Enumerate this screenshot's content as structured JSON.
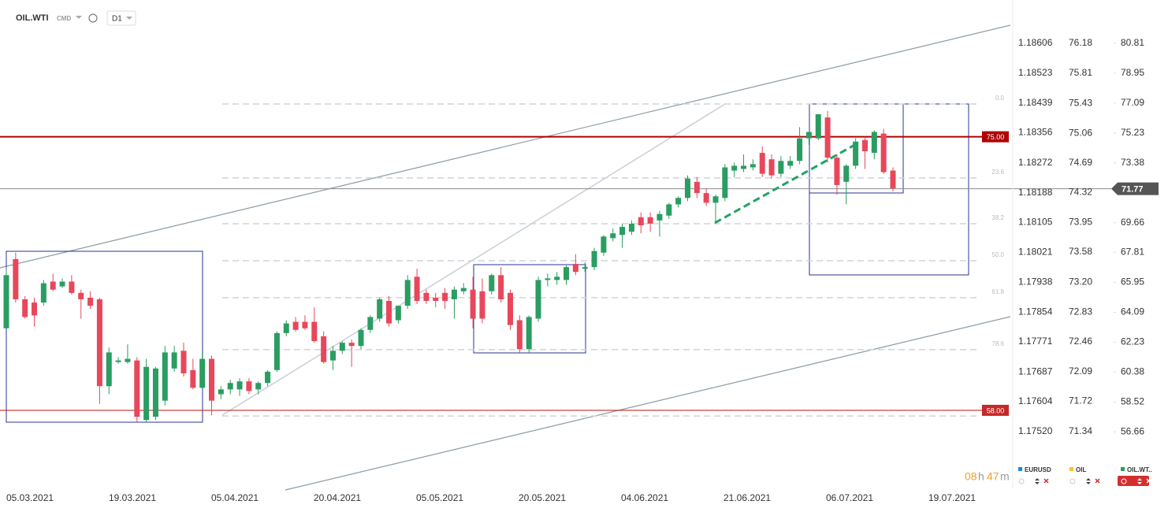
{
  "chart_data": {
    "type": "candlestick",
    "symbol": "OIL.WTI",
    "tag": "CMD",
    "timeframe": "D1",
    "colors": {
      "up": "#2a9d62",
      "down": "#e8475b"
    },
    "ylim": [
      53.15,
      83.5
    ],
    "yticks": [
      80.81,
      78.95,
      77.09,
      75.23,
      73.38,
      69.66,
      67.81,
      65.95,
      64.09,
      62.23,
      60.38,
      58.52,
      56.66
    ],
    "eurusd_ticks": [
      1.18606,
      1.18523,
      1.18439,
      1.18356,
      1.18272,
      1.18188,
      1.18105,
      1.18021,
      1.17938,
      1.17854,
      1.17771,
      1.17687,
      1.17604,
      {
        "value": 1.1752,
        "label": "1.17520"
      }
    ],
    "oil_ticks": [
      76.18,
      75.81,
      75.43,
      75.06,
      74.69,
      74.32,
      73.95,
      73.58,
      {
        "value": 73.2,
        "label": "73.20"
      },
      72.83,
      72.46,
      72.09,
      71.72,
      71.34
    ],
    "dates": [
      "05.03.2021",
      "19.03.2021",
      "05.04.2021",
      "20.04.2021",
      "05.05.2021",
      "20.05.2021",
      "04.06.2021",
      "21.06.2021",
      "06.07.2021",
      "19.07.2021"
    ],
    "levels": [
      {
        "price": 75,
        "label": "75.00",
        "color": "#b00000"
      },
      {
        "price": 58,
        "label": "58.00",
        "color": "#c62828"
      }
    ],
    "current": {
      "price": 71.77,
      "label": "71.77"
    },
    "fib": [
      {
        "ratio": {
          "value": 0,
          "label": "0.0"
        },
        "price": 77.04
      },
      {
        "ratio": 23.6,
        "price": 72.44
      },
      {
        "ratio": 38.2,
        "price": 69.6
      },
      {
        "ratio": {
          "value": 50,
          "label": "50.0"
        },
        "price": 67.3
      },
      {
        "ratio": 61.8,
        "price": 65.0
      },
      {
        "ratio": 78.6,
        "price": 61.77
      },
      {
        "price": 57.65
      }
    ],
    "ohlc": [
      [
        63.1,
        66.9,
        63.1,
        66.4
      ],
      [
        67.4,
        67.8,
        64.7,
        64.9
      ],
      [
        64.9,
        65.1,
        63.7,
        63.8
      ],
      [
        64.7,
        65.0,
        63.2,
        63.9
      ],
      [
        64.7,
        66.1,
        64.5,
        65.9
      ],
      [
        66.0,
        66.5,
        65.4,
        65.5
      ],
      [
        65.7,
        66.2,
        65.6,
        66.0
      ],
      [
        66.0,
        66.4,
        65.2,
        65.3
      ],
      [
        65.3,
        65.5,
        63.7,
        64.9
      ],
      [
        65.0,
        65.4,
        64.3,
        64.5
      ],
      [
        64.9,
        65.0,
        58.4,
        59.5
      ],
      [
        59.5,
        61.9,
        59.0,
        61.6
      ],
      [
        61.0,
        61.3,
        60.9,
        61.1
      ],
      [
        61.0,
        62.1,
        60.9,
        61.2
      ],
      [
        61.1,
        61.3,
        57.3,
        57.6
      ],
      [
        57.4,
        61.2,
        57.3,
        60.7
      ],
      [
        57.6,
        60.7,
        57.4,
        60.6
      ],
      [
        58.6,
        62.0,
        58.3,
        61.6
      ],
      [
        60.6,
        62.0,
        60.4,
        61.6
      ],
      [
        61.7,
        62.2,
        60.1,
        60.3
      ],
      [
        60.5,
        61.2,
        59.3,
        59.4
      ],
      [
        59.4,
        61.7,
        59.3,
        61.2
      ],
      [
        61.2,
        61.4,
        57.7,
        58.6
      ],
      [
        59.0,
        59.5,
        58.7,
        59.3
      ],
      [
        59.3,
        59.9,
        59.0,
        59.7
      ],
      [
        59.3,
        60.0,
        58.9,
        59.8
      ],
      [
        59.8,
        60.0,
        59.0,
        59.2
      ],
      [
        59.3,
        59.8,
        59.0,
        59.7
      ],
      [
        59.7,
        60.5,
        59.5,
        60.4
      ],
      [
        60.5,
        62.9,
        60.4,
        62.8
      ],
      [
        62.8,
        63.6,
        62.6,
        63.4
      ],
      [
        63.5,
        63.8,
        62.9,
        63.0
      ],
      [
        63.5,
        63.9,
        63.0,
        63.1
      ],
      [
        63.5,
        64.4,
        62.2,
        62.3
      ],
      [
        62.6,
        62.9,
        60.9,
        61.0
      ],
      [
        61.1,
        62.0,
        60.5,
        61.7
      ],
      [
        61.7,
        62.3,
        61.5,
        62.2
      ],
      [
        62.2,
        62.4,
        60.7,
        62.0
      ],
      [
        62.0,
        63.1,
        61.8,
        63.0
      ],
      [
        63.0,
        63.9,
        62.8,
        63.8
      ],
      [
        63.7,
        65.0,
        63.5,
        64.9
      ],
      [
        64.8,
        65.1,
        63.2,
        63.4
      ],
      [
        63.6,
        64.5,
        63.4,
        64.5
      ],
      [
        64.5,
        66.4,
        64.3,
        66.1
      ],
      [
        66.3,
        66.8,
        64.6,
        64.8
      ],
      [
        65.3,
        65.5,
        64.6,
        64.8
      ],
      [
        65.0,
        65.3,
        64.4,
        64.8
      ],
      [
        65.3,
        65.6,
        64.3,
        64.8
      ],
      [
        64.9,
        65.7,
        63.7,
        65.5
      ],
      [
        65.4,
        65.9,
        65.2,
        65.6
      ],
      [
        65.5,
        66.3,
        63.1,
        63.7
      ],
      [
        65.4,
        66.2,
        63.4,
        63.7
      ],
      [
        65.4,
        66.5,
        65.2,
        66.4
      ],
      [
        66.4,
        66.9,
        64.7,
        64.9
      ],
      [
        65.3,
        65.5,
        63.0,
        63.3
      ],
      [
        63.6,
        63.9,
        61.6,
        61.8
      ],
      [
        61.8,
        63.9,
        61.6,
        63.8
      ],
      [
        63.7,
        66.3,
        63.5,
        66.1
      ],
      [
        66.1,
        66.5,
        65.7,
        66.2
      ],
      [
        66.1,
        66.6,
        65.8,
        66.3
      ],
      [
        66.1,
        67.0,
        65.8,
        66.9
      ],
      [
        67.1,
        67.7,
        66.4,
        66.6
      ],
      [
        66.8,
        67.2,
        66.6,
        66.9
      ],
      [
        66.9,
        68.1,
        66.7,
        67.9
      ],
      [
        67.8,
        68.9,
        67.6,
        68.8
      ],
      [
        68.7,
        69.3,
        68.5,
        69.0
      ],
      [
        68.9,
        69.6,
        68.1,
        69.4
      ],
      [
        69.1,
        69.8,
        68.9,
        69.6
      ],
      [
        70.0,
        70.3,
        69.0,
        69.5
      ],
      [
        70.0,
        70.3,
        69.1,
        69.6
      ],
      [
        69.8,
        70.4,
        68.8,
        70.2
      ],
      [
        70.1,
        70.9,
        69.9,
        70.8
      ],
      [
        70.8,
        71.3,
        70.6,
        71.2
      ],
      [
        71.2,
        72.6,
        71.0,
        72.4
      ],
      [
        72.2,
        72.5,
        71.2,
        71.5
      ],
      [
        71.5,
        71.8,
        70.7,
        70.9
      ],
      [
        70.9,
        71.4,
        69.7,
        71.3
      ],
      [
        71.2,
        73.3,
        71.0,
        73.1
      ],
      [
        72.9,
        73.4,
        72.5,
        73.2
      ],
      [
        73.0,
        73.9,
        72.8,
        73.2
      ],
      [
        73.1,
        73.6,
        72.9,
        73.3
      ],
      [
        74.0,
        74.4,
        72.5,
        72.7
      ],
      [
        73.6,
        73.9,
        72.4,
        72.6
      ],
      [
        72.7,
        73.8,
        72.5,
        73.5
      ],
      [
        73.2,
        73.8,
        73.0,
        73.5
      ],
      [
        73.5,
        75.6,
        73.3,
        74.9
      ],
      [
        74.9,
        75.3,
        74.5,
        75.3
      ],
      [
        74.9,
        76.4,
        74.8,
        76.4
      ],
      [
        76.2,
        76.6,
        73.4,
        73.7
      ],
      [
        73.7,
        73.9,
        71.4,
        72.0
      ],
      [
        72.2,
        73.3,
        70.8,
        73.2
      ],
      [
        73.2,
        74.9,
        73.0,
        74.7
      ],
      [
        74.8,
        75.0,
        73.0,
        74.1
      ],
      [
        74.0,
        75.4,
        73.6,
        75.3
      ],
      [
        75.2,
        75.5,
        72.7,
        72.8
      ],
      [
        72.9,
        73.1,
        71.6,
        71.8
      ]
    ],
    "instruments": [
      {
        "name": "EURUSD",
        "color": "#1e88e5"
      },
      {
        "name": "OIL",
        "color": "#f4c430"
      },
      {
        "name": "OIL.WT..",
        "color": "#2a9d62"
      }
    ],
    "countdown": {
      "hours": "08",
      "hours_unit": "h",
      "minutes": "47",
      "minutes_unit": "m"
    }
  }
}
